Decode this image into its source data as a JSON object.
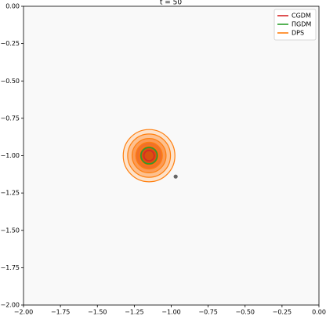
{
  "chart_data": {
    "type": "contour",
    "title": "t = 50",
    "xlim": [
      -2,
      0
    ],
    "ylim": [
      0,
      -2
    ],
    "xticks": [
      {
        "value": -2,
        "label": "−2.00"
      },
      {
        "value": -1.75,
        "label": "−1.75"
      },
      {
        "value": -1.5,
        "label": "−1.50"
      },
      {
        "value": -1.25,
        "label": "−1.25"
      },
      {
        "value": -1,
        "label": "−1.00"
      },
      {
        "value": -0.75,
        "label": "−0.75"
      },
      {
        "value": -0.5,
        "label": "−0.50"
      },
      {
        "value": -0.25,
        "label": "−0.25"
      },
      {
        "value": 0,
        "label": "0.00"
      }
    ],
    "yticks": [
      {
        "value": 0,
        "label": "0.00"
      },
      {
        "value": -0.25,
        "label": "−0.25"
      },
      {
        "value": -0.5,
        "label": "−0.50"
      },
      {
        "value": -0.75,
        "label": "−0.75"
      },
      {
        "value": -1,
        "label": "−1.00"
      },
      {
        "value": -1.25,
        "label": "−1.25"
      },
      {
        "value": -1.5,
        "label": "−1.50"
      },
      {
        "value": -1.75,
        "label": "−1.75"
      },
      {
        "value": -2,
        "label": "−2.00"
      }
    ],
    "legend": "upper right",
    "fill_colors": [
      "#fde3cc",
      "#fdc08f",
      "#fb9a56",
      "#f1702a",
      "#d9520f"
    ],
    "series": [
      {
        "name": "DPS",
        "color": "#ff7f0e",
        "center": [
          -1.15,
          -1.0
        ],
        "radii": [
          0.175,
          0.145,
          0.115,
          0.09,
          0.065
        ]
      },
      {
        "name": "ΠGDM",
        "color": "#2ca02c",
        "center": [
          -1.15,
          -1.0
        ],
        "radii": [
          0.055
        ]
      },
      {
        "name": "CGDM",
        "color": "#d62728",
        "center": [
          -1.15,
          -1.0
        ],
        "radii": [
          0.035
        ]
      }
    ],
    "legend_order": [
      2,
      1,
      0
    ],
    "point": {
      "x": -0.97,
      "y": -1.14,
      "color": "#666666"
    }
  }
}
